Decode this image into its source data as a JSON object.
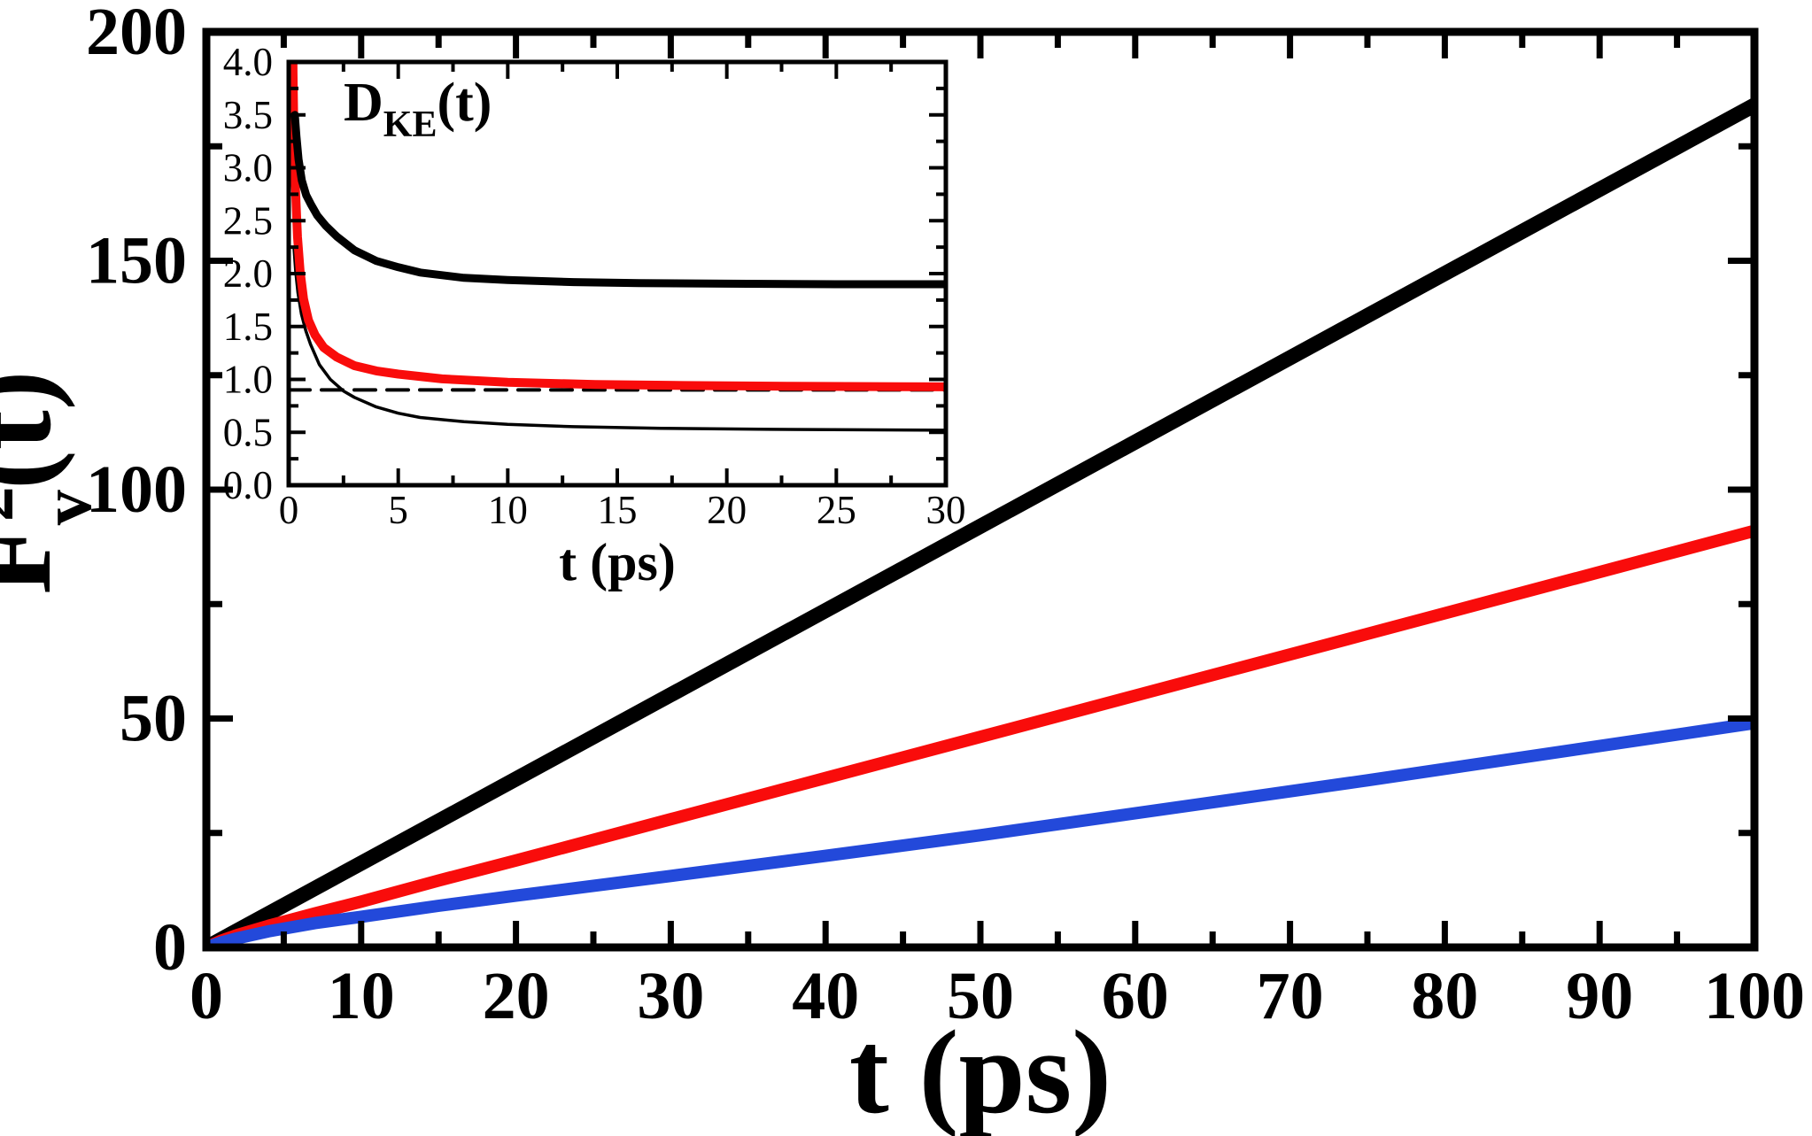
{
  "figure": {
    "background": "#ffffff",
    "frame_color": "#000000"
  },
  "chart_data": [
    {
      "id": "main",
      "type": "line",
      "title": "",
      "xlabel": "t (ps)",
      "ylabel_parts": {
        "base": "F",
        "sup": "2",
        "sub": "v",
        "rest": "(t)"
      },
      "xlim": [
        0,
        100
      ],
      "ylim": [
        0,
        200
      ],
      "grid": false,
      "legend": "none",
      "x_ticks": {
        "major": [
          0,
          10,
          20,
          30,
          40,
          50,
          60,
          70,
          80,
          90,
          100
        ],
        "minor_step": 5,
        "decimals": 0
      },
      "y_ticks": {
        "major": [
          0,
          50,
          100,
          150,
          200
        ],
        "minor_step": 25,
        "decimals": 0
      },
      "series": [
        {
          "name": "black-line",
          "color": "#000000",
          "width": 17,
          "t": [
            0,
            10,
            25,
            50,
            75,
            100
          ],
          "v": [
            0,
            18.4,
            46,
            92,
            138,
            184
          ]
        },
        {
          "name": "red-line",
          "color": "#f90c0b",
          "width": 14,
          "t": [
            0,
            1,
            2,
            4,
            7,
            10,
            15,
            20,
            30,
            40,
            50,
            60,
            75,
            100
          ],
          "v": [
            0,
            1.5,
            2.7,
            4.7,
            7.4,
            10,
            14.6,
            19,
            28,
            37,
            46,
            55,
            68.5,
            91
          ]
        },
        {
          "name": "blue-line",
          "color": "#2349da",
          "width": 14,
          "t": [
            0,
            1,
            2,
            4,
            7,
            10,
            15,
            20,
            30,
            40,
            50,
            75,
            100
          ],
          "v": [
            0,
            1.1,
            2.0,
            3.5,
            5.3,
            6.7,
            9.1,
            11.3,
            15.6,
            20,
            24.5,
            36.5,
            49
          ]
        }
      ]
    },
    {
      "id": "inset",
      "type": "line",
      "title": "",
      "xlabel": "t (ps)",
      "annotation_parts": {
        "base": "D",
        "sub": "KE",
        "rest": "(t)"
      },
      "xlim": [
        0,
        30
      ],
      "ylim": [
        0.0,
        4.0
      ],
      "grid": false,
      "legend": "none",
      "x_ticks": {
        "major": [
          0,
          5,
          10,
          15,
          20,
          25,
          30
        ],
        "minor_step": 2.5,
        "decimals": 0
      },
      "y_ticks": {
        "major": [
          0.0,
          0.5,
          1.0,
          1.5,
          2.0,
          2.5,
          3.0,
          3.5,
          4.0
        ],
        "minor_step": 0.25,
        "decimals": 1
      },
      "series": [
        {
          "name": "dashed-line",
          "color": "#000000",
          "width": 4,
          "dash": [
            24,
            13
          ],
          "t": [
            0,
            30
          ],
          "v": [
            0.9,
            0.9
          ]
        },
        {
          "name": "thin-black-curve",
          "color": "#000000",
          "width": 3.5,
          "t": [
            0.24,
            0.32,
            0.42,
            0.58,
            0.78,
            1.0,
            1.4,
            1.9,
            2.5,
            3.0,
            4.0,
            5.0,
            6.0,
            8.0,
            10,
            13,
            17,
            22,
            30
          ],
          "v": [
            2.25,
            2.02,
            1.82,
            1.62,
            1.46,
            1.33,
            1.14,
            1.0,
            0.89,
            0.83,
            0.74,
            0.68,
            0.64,
            0.6,
            0.575,
            0.553,
            0.538,
            0.528,
            0.52
          ]
        },
        {
          "name": "red-curve",
          "color": "#f90c0b",
          "width": 10,
          "t": [
            0.18,
            0.2,
            0.24,
            0.3,
            0.4,
            0.52,
            0.68,
            0.9,
            1.2,
            1.6,
            2.2,
            3.0,
            4.0,
            5.0,
            7.0,
            10,
            14,
            18,
            23,
            30
          ],
          "v": [
            4.4,
            3.9,
            3.3,
            2.85,
            2.35,
            2.02,
            1.76,
            1.56,
            1.42,
            1.3,
            1.21,
            1.13,
            1.08,
            1.05,
            1.005,
            0.972,
            0.952,
            0.942,
            0.935,
            0.93
          ]
        },
        {
          "name": "thick-black-curve",
          "color": "#000000",
          "width": 9,
          "t": [
            0.28,
            0.35,
            0.45,
            0.6,
            0.8,
            1.0,
            1.3,
            1.7,
            2.2,
            3.0,
            4.0,
            5.0,
            6.0,
            8.0,
            10,
            13,
            16,
            20,
            25,
            30
          ],
          "v": [
            3.5,
            3.3,
            3.08,
            2.88,
            2.74,
            2.66,
            2.55,
            2.45,
            2.35,
            2.22,
            2.12,
            2.06,
            2.01,
            1.96,
            1.94,
            1.92,
            1.91,
            1.905,
            1.9,
            1.9
          ]
        }
      ]
    }
  ]
}
